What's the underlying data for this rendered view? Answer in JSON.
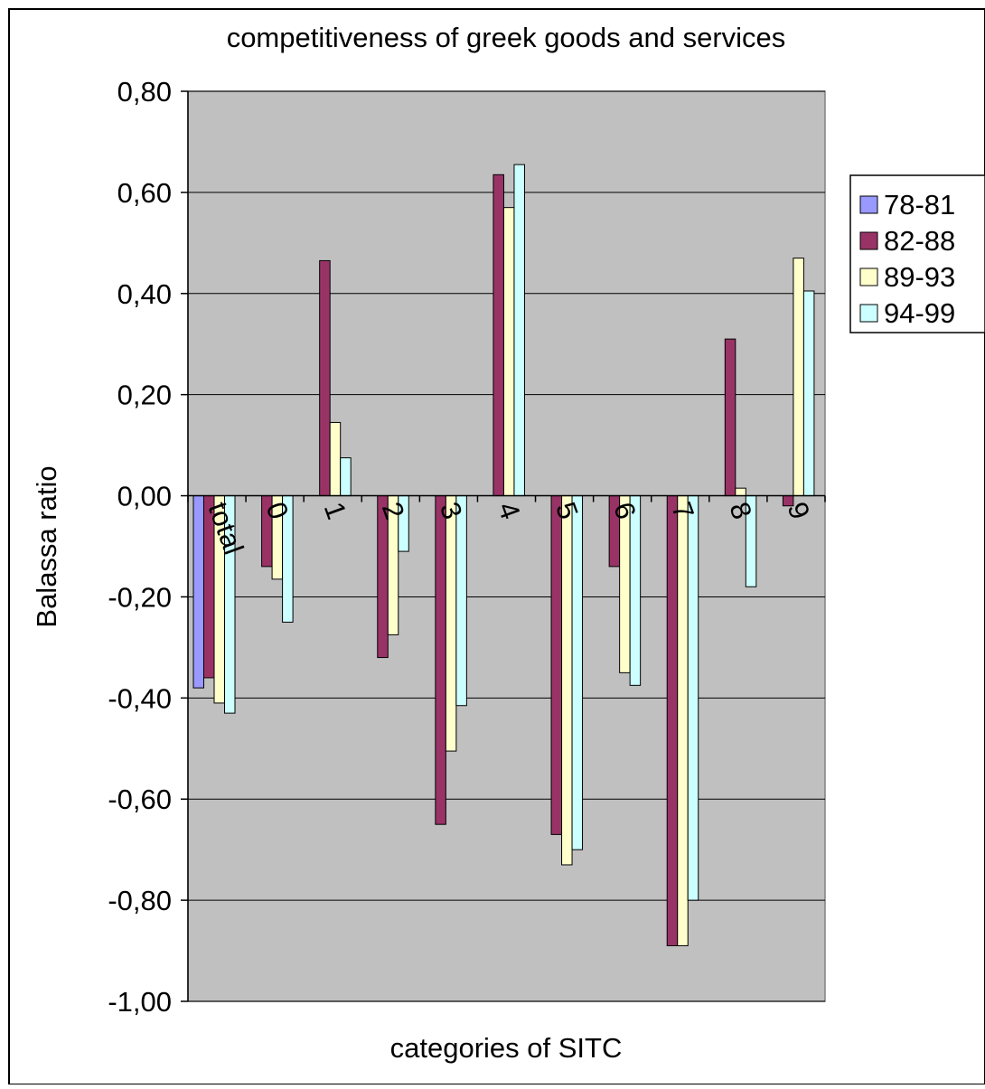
{
  "chart_data": {
    "type": "bar",
    "title": "competitiveness of greek goods and services",
    "xlabel": "categories of SITC",
    "ylabel": "Balassa ratio",
    "ylim": [
      -1.0,
      0.8
    ],
    "ytick_values": [
      -1.0,
      -0.8,
      -0.6,
      -0.4,
      -0.2,
      0.0,
      0.2,
      0.4,
      0.6,
      0.8
    ],
    "ytick_labels": [
      "-1,00",
      "-0,80",
      "-0,60",
      "-0,40",
      "-0,20",
      "0,00",
      "0,20",
      "0,40",
      "0,60",
      "0,80"
    ],
    "categories": [
      "total",
      "0",
      "1",
      "2",
      "3",
      "4",
      "5",
      "6",
      "7",
      "8",
      "9"
    ],
    "grid": true,
    "legend_position": "right",
    "plot_background": "#c0c0c0",
    "series": [
      {
        "name": "78-81",
        "color": "#9999ff",
        "values": [
          -0.38,
          null,
          null,
          null,
          null,
          null,
          null,
          null,
          null,
          null,
          null
        ]
      },
      {
        "name": "82-88",
        "color": "#993366",
        "values": [
          -0.36,
          -0.14,
          0.465,
          -0.32,
          -0.65,
          0.635,
          -0.67,
          -0.14,
          -0.89,
          0.31,
          -0.02
        ]
      },
      {
        "name": "89-93",
        "color": "#ffffcc",
        "values": [
          -0.41,
          -0.165,
          0.145,
          -0.275,
          -0.505,
          0.57,
          -0.73,
          -0.35,
          -0.89,
          0.015,
          0.47
        ]
      },
      {
        "name": "94-99",
        "color": "#ccffff",
        "values": [
          -0.43,
          -0.25,
          0.075,
          -0.11,
          -0.415,
          0.655,
          -0.7,
          -0.375,
          -0.8,
          -0.18,
          0.405
        ]
      }
    ]
  }
}
